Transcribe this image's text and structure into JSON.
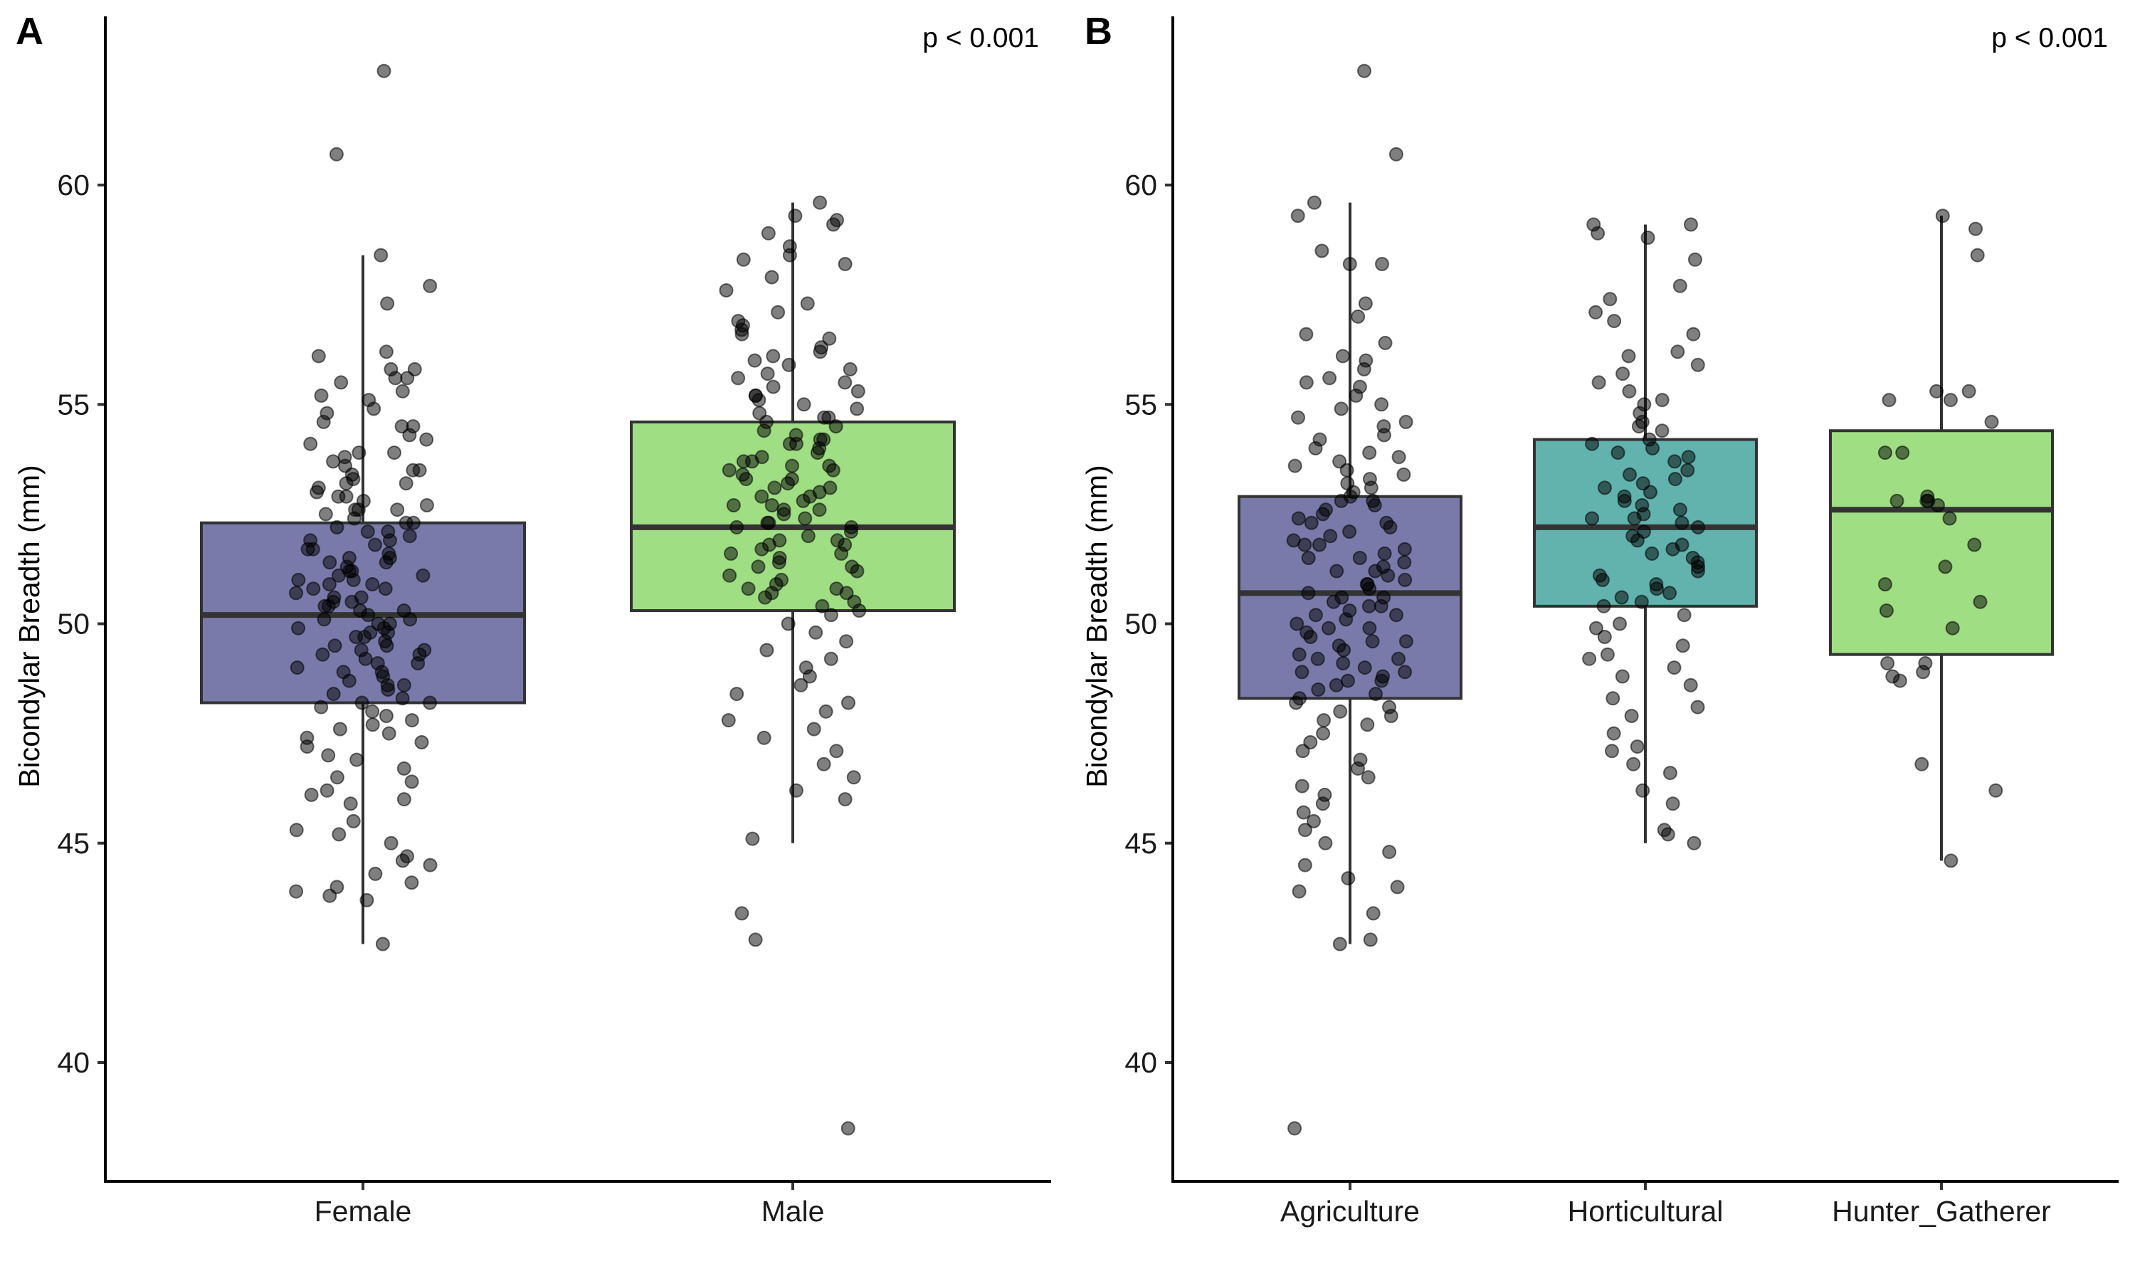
{
  "chart_data": [
    {
      "type": "boxplot",
      "panel_tag": "A",
      "title": "",
      "xlabel": "",
      "ylabel": "Bicondylar Breadth (mm)",
      "annotation": "p < 0.001",
      "annotation_position": "top-right",
      "ylim": [
        37.3,
        63.8
      ],
      "yticks": [
        "40",
        "45",
        "50",
        "55",
        "60"
      ],
      "ytick_values": [
        40,
        45,
        50,
        55,
        60
      ],
      "grid": false,
      "legend": "none",
      "categories": [
        "Female",
        "Male"
      ],
      "boxes": [
        {
          "category": "Female",
          "color": "#7A7AAA",
          "q1": 48.2,
          "median": 50.2,
          "q3": 52.3,
          "whisker_low": 42.7,
          "whisker_high": 58.4
        },
        {
          "category": "Male",
          "color": "#A0DE84",
          "q1": 50.3,
          "median": 52.2,
          "q3": 54.6,
          "whisker_low": 45.0,
          "whisker_high": 59.6
        }
      ],
      "points": {
        "Female": [
          62.6,
          60.7,
          58.4,
          57.7,
          57.3,
          56.2,
          56.1,
          55.8,
          55.8,
          55.6,
          55.6,
          55.5,
          55.3,
          55.2,
          54.9,
          54.8,
          54.6,
          54.5,
          54.5,
          54.3,
          54.1,
          53.9,
          53.9,
          53.8,
          53.7,
          53.6,
          53.5,
          53.5,
          53.4,
          53.3,
          53.2,
          53.1,
          53.0,
          52.9,
          52.9,
          52.8,
          52.7,
          52.6,
          52.6,
          52.5,
          52.4,
          52.3,
          52.3,
          52.2,
          52.1,
          52.0,
          51.9,
          51.9,
          51.8,
          51.7,
          51.6,
          51.5,
          51.5,
          51.4,
          51.3,
          51.2,
          51.2,
          51.1,
          51.0,
          51.0,
          50.9,
          50.8,
          50.8,
          50.7,
          50.6,
          50.5,
          50.5,
          50.4,
          50.3,
          50.3,
          50.2,
          50.1,
          50.0,
          50.0,
          49.9,
          49.8,
          49.7,
          49.7,
          49.6,
          49.5,
          49.4,
          49.4,
          49.3,
          49.2,
          49.1,
          49.1,
          49.0,
          48.9,
          48.8,
          48.7,
          48.6,
          48.5,
          48.4,
          48.3,
          48.2,
          48.2,
          48.1,
          48.0,
          47.9,
          47.8,
          47.7,
          47.5,
          47.4,
          47.3,
          47.2,
          47.0,
          46.9,
          46.7,
          46.5,
          46.4,
          46.2,
          46.0,
          45.9,
          45.5,
          45.3,
          45.2,
          45.0,
          44.7,
          44.6,
          44.5,
          44.3,
          44.1,
          44.0,
          43.9,
          43.8,
          43.7,
          42.7,
          52.1,
          51.4,
          50.6,
          49.9,
          49.3,
          48.6,
          51.7,
          50.9,
          50.1,
          49.5,
          52.6,
          51.1,
          49.8,
          48.9,
          53.2,
          50.4,
          47.6,
          46.1,
          55.1,
          54.2
        ],
        "Male": [
          59.6,
          59.3,
          59.2,
          59.1,
          58.9,
          58.6,
          58.4,
          58.3,
          58.2,
          57.9,
          57.6,
          57.3,
          57.1,
          56.9,
          56.8,
          56.7,
          56.6,
          56.5,
          56.3,
          56.2,
          56.1,
          56.0,
          55.9,
          55.8,
          55.7,
          55.6,
          55.5,
          55.4,
          55.3,
          55.2,
          55.1,
          55.0,
          54.9,
          54.8,
          54.7,
          54.6,
          54.5,
          54.4,
          54.3,
          54.2,
          54.1,
          54.0,
          53.9,
          53.8,
          53.7,
          53.6,
          53.5,
          53.4,
          53.3,
          53.2,
          53.1,
          53.0,
          52.9,
          52.8,
          52.7,
          52.6,
          52.5,
          52.4,
          52.3,
          52.2,
          52.1,
          52.0,
          51.9,
          51.8,
          51.7,
          51.6,
          51.5,
          51.4,
          51.3,
          51.2,
          51.1,
          51.0,
          50.9,
          50.8,
          50.7,
          50.6,
          50.5,
          50.4,
          50.3,
          50.2,
          50.0,
          49.8,
          49.6,
          49.4,
          49.2,
          49.0,
          48.8,
          48.6,
          48.4,
          48.2,
          48.0,
          47.8,
          47.6,
          47.4,
          47.1,
          46.8,
          46.5,
          46.2,
          46.0,
          45.1,
          43.4,
          42.8,
          38.5,
          53.5,
          52.9,
          52.3,
          51.6,
          53.1,
          52.6,
          54.2,
          53.7,
          51.9,
          50.8,
          54.7,
          55.2,
          53.3,
          52.2,
          51.3,
          50.7,
          54.1,
          53.6,
          52.7,
          51.8
        ],
        "note": "points are approximate, jittered horizontally"
      }
    },
    {
      "type": "boxplot",
      "panel_tag": "B",
      "title": "",
      "xlabel": "",
      "ylabel": "Bicondylar Breadth (mm)",
      "annotation": "p < 0.001",
      "annotation_position": "top-right",
      "ylim": [
        37.3,
        63.8
      ],
      "yticks": [
        "40",
        "45",
        "50",
        "55",
        "60"
      ],
      "ytick_values": [
        40,
        45,
        50,
        55,
        60
      ],
      "grid": false,
      "legend": "none",
      "categories": [
        "Agriculture",
        "Horticultural",
        "Hunter_Gatherer"
      ],
      "boxes": [
        {
          "category": "Agriculture",
          "color": "#7A7AAA",
          "q1": 48.3,
          "median": 50.7,
          "q3": 52.9,
          "whisker_low": 42.7,
          "whisker_high": 59.6
        },
        {
          "category": "Horticultural",
          "color": "#62B2AE",
          "q1": 50.4,
          "median": 52.2,
          "q3": 54.2,
          "whisker_low": 45.0,
          "whisker_high": 59.1
        },
        {
          "category": "Hunter_Gatherer",
          "color": "#A0DE84",
          "q1": 49.3,
          "median": 52.6,
          "q3": 54.4,
          "whisker_low": 44.6,
          "whisker_high": 59.3
        }
      ],
      "points": {
        "Agriculture": [
          62.6,
          60.7,
          59.6,
          59.3,
          58.5,
          58.2,
          58.2,
          57.3,
          57.0,
          56.6,
          56.4,
          56.1,
          56.0,
          55.8,
          55.6,
          55.5,
          55.4,
          55.2,
          55.0,
          54.9,
          54.7,
          54.6,
          54.5,
          54.3,
          54.2,
          54.0,
          53.9,
          53.8,
          53.7,
          53.5,
          53.4,
          53.3,
          53.2,
          53.1,
          53.0,
          52.9,
          52.8,
          52.7,
          52.6,
          52.5,
          52.4,
          52.3,
          52.2,
          52.1,
          52.0,
          51.9,
          51.8,
          51.7,
          51.6,
          51.5,
          51.4,
          51.3,
          51.2,
          51.1,
          51.0,
          50.9,
          50.8,
          50.7,
          50.6,
          50.5,
          50.4,
          50.3,
          50.2,
          50.1,
          50.0,
          49.9,
          49.8,
          49.7,
          49.6,
          49.5,
          49.4,
          49.3,
          49.2,
          49.1,
          49.0,
          48.9,
          48.8,
          48.7,
          48.6,
          48.5,
          48.4,
          48.3,
          48.2,
          48.1,
          48.0,
          47.9,
          47.7,
          47.5,
          47.3,
          47.1,
          46.9,
          46.7,
          46.5,
          46.3,
          46.1,
          45.9,
          45.7,
          45.5,
          45.3,
          45.0,
          44.8,
          44.5,
          44.2,
          44.0,
          43.9,
          43.4,
          42.8,
          42.7,
          38.5,
          51.5,
          50.2,
          49.6,
          52.3,
          50.9,
          49.2,
          48.7,
          51.8,
          50.4,
          53.6,
          47.8,
          49.9,
          51.2,
          52.8,
          50.6,
          48.9
        ],
        "Horticultural": [
          59.1,
          59.1,
          58.9,
          58.8,
          58.3,
          57.7,
          57.4,
          57.1,
          56.9,
          56.6,
          56.2,
          56.1,
          55.9,
          55.7,
          55.5,
          55.3,
          55.1,
          55.0,
          54.8,
          54.6,
          54.4,
          54.2,
          54.1,
          54.0,
          53.8,
          53.7,
          53.5,
          53.4,
          53.2,
          53.1,
          53.0,
          52.9,
          52.7,
          52.6,
          52.5,
          52.4,
          52.3,
          52.2,
          52.1,
          52.0,
          51.9,
          51.8,
          51.6,
          51.5,
          51.3,
          51.2,
          51.0,
          50.9,
          50.7,
          50.6,
          50.5,
          50.4,
          50.2,
          50.0,
          49.9,
          49.7,
          49.5,
          49.3,
          49.2,
          49.0,
          48.8,
          48.6,
          48.3,
          48.1,
          47.9,
          47.5,
          47.2,
          47.1,
          46.8,
          46.6,
          46.2,
          45.9,
          45.3,
          45.2,
          45.0,
          53.3,
          52.8,
          51.7,
          51.1,
          50.8,
          53.9,
          54.5,
          52.4,
          51.4
        ],
        "Hunter_Gatherer": [
          59.3,
          59.0,
          58.4,
          55.3,
          55.3,
          55.1,
          55.1,
          54.6,
          53.9,
          53.9,
          52.9,
          52.8,
          52.8,
          52.8,
          52.7,
          52.4,
          51.8,
          51.3,
          50.9,
          50.5,
          50.3,
          49.9,
          49.1,
          49.1,
          48.9,
          48.8,
          48.7,
          46.8,
          46.2,
          44.6
        ],
        "note": "points are approximate, jittered horizontally"
      }
    }
  ],
  "style": {
    "point_color": "#000000",
    "box_line_color": "#333333"
  }
}
